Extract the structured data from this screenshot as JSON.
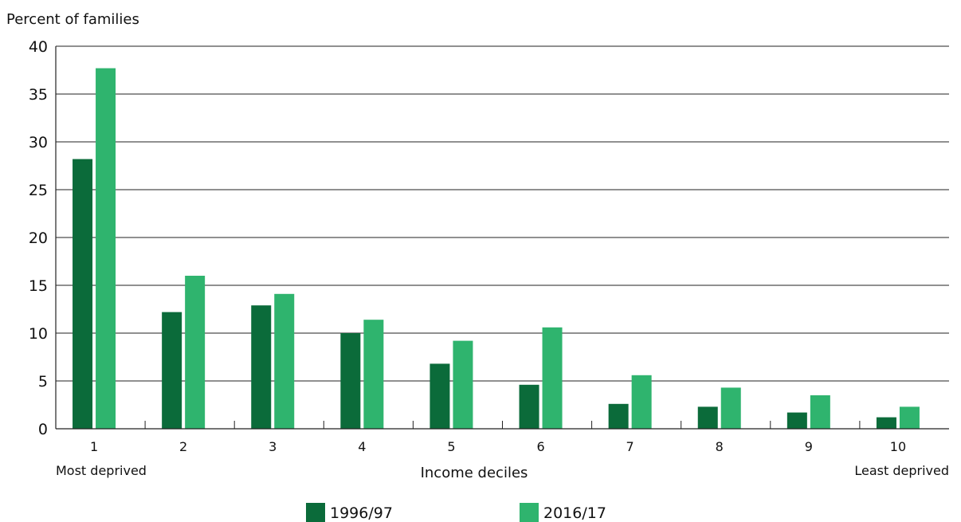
{
  "chart_data": {
    "type": "bar",
    "title": "",
    "ylabel": "Percent of families",
    "xlabel": "Income deciles",
    "x_end_labels": {
      "left": "Most deprived",
      "right": "Least deprived"
    },
    "categories": [
      "1",
      "2",
      "3",
      "4",
      "5",
      "6",
      "7",
      "8",
      "9",
      "10"
    ],
    "series": [
      {
        "name": "1996/97",
        "color": "#0b6b3a",
        "values": [
          28.2,
          12.2,
          12.9,
          10.0,
          6.8,
          4.6,
          2.6,
          2.3,
          1.7,
          1.2
        ]
      },
      {
        "name": "2016/17",
        "color": "#2fb46e",
        "values": [
          37.7,
          16.0,
          14.1,
          11.4,
          9.2,
          10.6,
          5.6,
          4.3,
          3.5,
          2.3
        ]
      }
    ],
    "ylim": [
      0,
      40
    ],
    "yticks": [
      0,
      5,
      10,
      15,
      20,
      25,
      30,
      35,
      40
    ],
    "grid": true,
    "legend_position": "bottom"
  }
}
